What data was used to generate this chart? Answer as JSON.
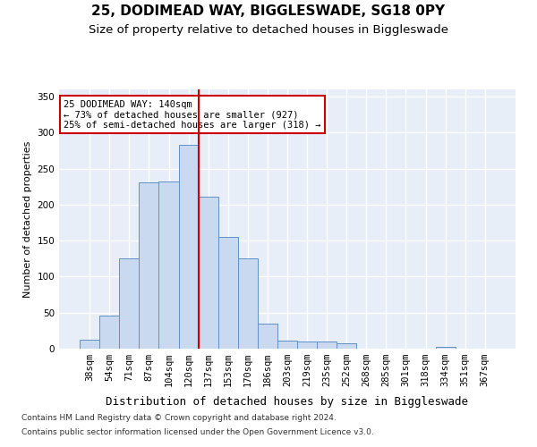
{
  "title1": "25, DODIMEAD WAY, BIGGLESWADE, SG18 0PY",
  "title2": "Size of property relative to detached houses in Biggleswade",
  "xlabel": "Distribution of detached houses by size in Biggleswade",
  "ylabel": "Number of detached properties",
  "footnote1": "Contains HM Land Registry data © Crown copyright and database right 2024.",
  "footnote2": "Contains public sector information licensed under the Open Government Licence v3.0.",
  "bins": [
    "38sqm",
    "54sqm",
    "71sqm",
    "87sqm",
    "104sqm",
    "120sqm",
    "137sqm",
    "153sqm",
    "170sqm",
    "186sqm",
    "203sqm",
    "219sqm",
    "235sqm",
    "252sqm",
    "268sqm",
    "285sqm",
    "301sqm",
    "318sqm",
    "334sqm",
    "351sqm",
    "367sqm"
  ],
  "values": [
    12,
    46,
    126,
    231,
    232,
    283,
    211,
    155,
    125,
    35,
    11,
    10,
    10,
    8,
    0,
    0,
    0,
    0,
    2,
    0,
    0
  ],
  "bar_color": "#c8d9f0",
  "bar_edge_color": "#6090c8",
  "vline_color": "#cc0000",
  "vline_pos": 5.5,
  "annotation_text": "25 DODIMEAD WAY: 140sqm\n← 73% of detached houses are smaller (927)\n25% of semi-detached houses are larger (318) →",
  "ylim": [
    0,
    360
  ],
  "yticks": [
    0,
    50,
    100,
    150,
    200,
    250,
    300,
    350
  ],
  "bg_color": "#e8eef8",
  "grid_color": "#ffffff",
  "title1_fontsize": 11,
  "title2_fontsize": 9.5,
  "xlabel_fontsize": 9,
  "ylabel_fontsize": 8,
  "tick_fontsize": 7.5,
  "annot_fontsize": 7.5,
  "footnote_fontsize": 6.5
}
